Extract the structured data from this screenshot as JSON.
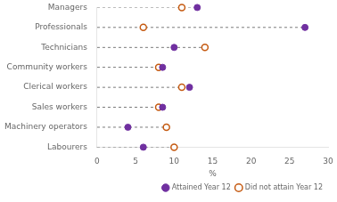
{
  "chart_data": {
    "type": "dot",
    "categories": [
      "Managers",
      "Professionals",
      "Technicians",
      "Community workers",
      "Clerical workers",
      "Sales workers",
      "Machinery operators",
      "Labourers"
    ],
    "series": [
      {
        "name": "Attained Year 12",
        "color": "#7030A0",
        "marker": "circle",
        "values": [
          13.0,
          27.0,
          10.0,
          8.5,
          12.0,
          8.5,
          4.0,
          6.0
        ]
      },
      {
        "name": "Did not attain Year 12",
        "color": "#C55A11",
        "marker": "open_circle",
        "values": [
          11.0,
          6.0,
          14.0,
          8.0,
          11.0,
          8.0,
          9.0,
          10.0
        ]
      }
    ],
    "xlabel": "%",
    "xlim": [
      0,
      30
    ],
    "xticks": [
      0,
      5,
      10,
      15,
      20,
      25,
      30
    ],
    "grid": false,
    "legend": "lower right"
  }
}
